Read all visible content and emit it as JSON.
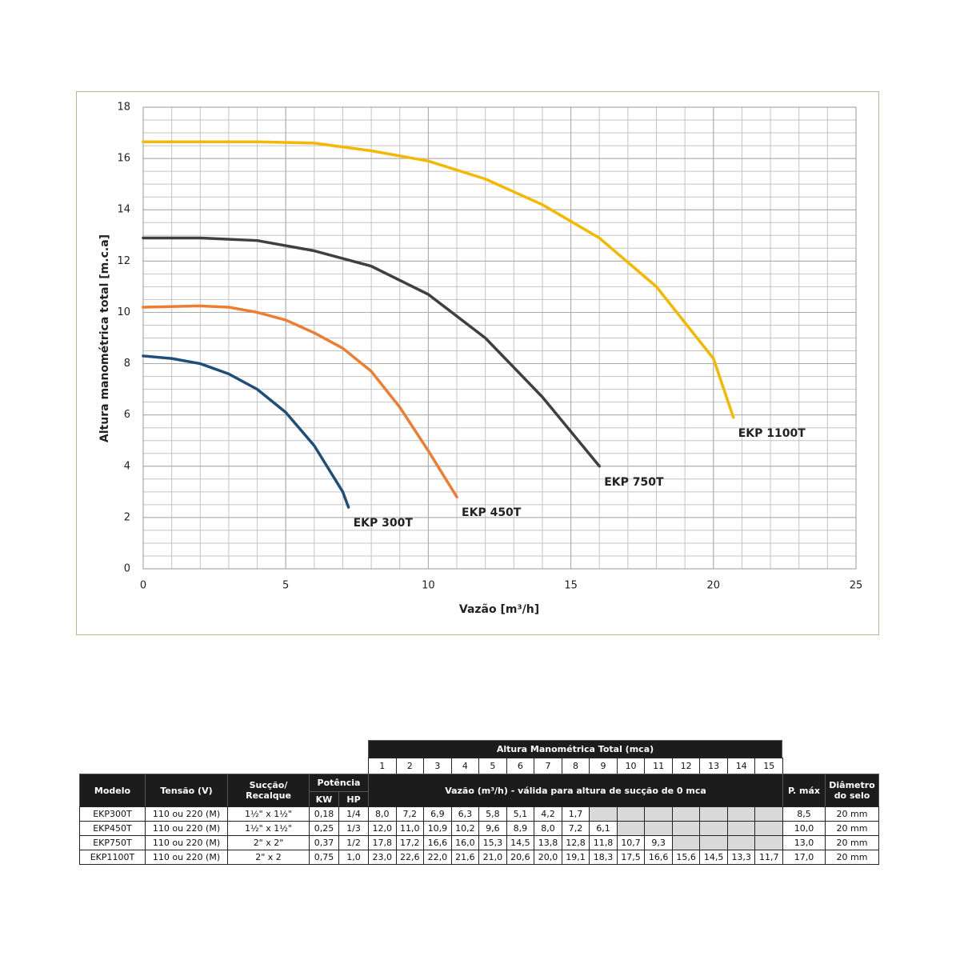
{
  "chart_data": {
    "type": "line",
    "x_label": "Vazão  [m³/h]",
    "y_label": "Altura manométrica total [m.c.a]",
    "xlim": [
      0,
      25
    ],
    "xticks": [
      0,
      5,
      10,
      15,
      20,
      25
    ],
    "ylim": [
      0,
      18
    ],
    "yticks": [
      0,
      2,
      4,
      6,
      8,
      10,
      12,
      14,
      16,
      18
    ],
    "grid": true,
    "minor_grid": {
      "x": 1,
      "y": 0.5
    },
    "series": [
      {
        "name": "EKP 300T",
        "color": "#1f4e79",
        "x": [
          0,
          1,
          2,
          3,
          4,
          5,
          6,
          7,
          7.2
        ],
        "values": [
          8.3,
          8.2,
          8.0,
          7.6,
          7.0,
          6.1,
          4.8,
          3.0,
          2.4
        ]
      },
      {
        "name": "EKP 450T",
        "color": "#ed7d31",
        "x": [
          0,
          2,
          3,
          4,
          5,
          6,
          7,
          8,
          9,
          10,
          11
        ],
        "values": [
          10.2,
          10.25,
          10.2,
          10.0,
          9.7,
          9.2,
          8.6,
          7.7,
          6.3,
          4.6,
          2.8
        ]
      },
      {
        "name": "EKP 750T",
        "color": "#404040",
        "x": [
          0,
          2,
          4,
          6,
          8,
          10,
          12,
          14,
          16
        ],
        "values": [
          12.9,
          12.9,
          12.8,
          12.4,
          11.8,
          10.7,
          9.0,
          6.7,
          4.0
        ]
      },
      {
        "name": "EKP 1100T",
        "color": "#f5b800",
        "x": [
          0,
          4,
          6,
          8,
          10,
          12,
          14,
          16,
          18,
          20,
          20.7
        ],
        "values": [
          16.65,
          16.65,
          16.6,
          16.3,
          15.9,
          15.2,
          14.2,
          12.9,
          11.0,
          8.2,
          5.9
        ]
      }
    ]
  },
  "table": {
    "top_header": "Altura Manométrica Total (mca)",
    "heights": [
      1,
      2,
      3,
      4,
      5,
      6,
      7,
      8,
      9,
      10,
      11,
      12,
      13,
      14,
      15
    ],
    "headers": {
      "model": "Modelo",
      "voltage": "Tensão (V)",
      "suction": "Sucção/ Recalque",
      "power": "Potência",
      "kw": "KW",
      "hp": "HP",
      "flow": "Vazão (m³/h) - válida para altura de sucção de 0 mca",
      "pmax": "P. máx",
      "seal": "Diâmetro do selo"
    },
    "rows": [
      {
        "model": "EKP300T",
        "voltage": "110 ou 220 (M)",
        "suction": "1½\" x 1½\"",
        "kw": "0,18",
        "hp": "1/4",
        "flows": [
          "8,0",
          "7,2",
          "6,9",
          "6,3",
          "5,8",
          "5,1",
          "4,2",
          "1,7",
          null,
          null,
          null,
          null,
          null,
          null,
          null
        ],
        "pmax": "8,5",
        "seal": "20 mm"
      },
      {
        "model": "EKP450T",
        "voltage": "110 ou 220 (M)",
        "suction": "1½\" x 1½\"",
        "kw": "0,25",
        "hp": "1/3",
        "flows": [
          "12,0",
          "11,0",
          "10,9",
          "10,2",
          "9,6",
          "8,9",
          "8,0",
          "7,2",
          "6,1",
          null,
          null,
          null,
          null,
          null,
          null
        ],
        "pmax": "10,0",
        "seal": "20 mm"
      },
      {
        "model": "EKP750T",
        "voltage": "110 ou 220 (M)",
        "suction": "2\" x 2\"",
        "kw": "0,37",
        "hp": "1/2",
        "flows": [
          "17,8",
          "17,2",
          "16,6",
          "16,0",
          "15,3",
          "14,5",
          "13,8",
          "12,8",
          "11,8",
          "10,7",
          "9,3",
          null,
          null,
          null,
          null
        ],
        "pmax": "13,0",
        "seal": "20 mm"
      },
      {
        "model": "EKP1100T",
        "voltage": "110 ou 220 (M)",
        "suction": "2\" x 2",
        "kw": "0,75",
        "hp": "1,0",
        "flows": [
          "23,0",
          "22,6",
          "22,0",
          "21,6",
          "21,0",
          "20,6",
          "20,0",
          "19,1",
          "18,3",
          "17,5",
          "16,6",
          "15,6",
          "14,5",
          "13,3",
          "11,7"
        ],
        "pmax": "17,0",
        "seal": "20 mm"
      }
    ]
  }
}
